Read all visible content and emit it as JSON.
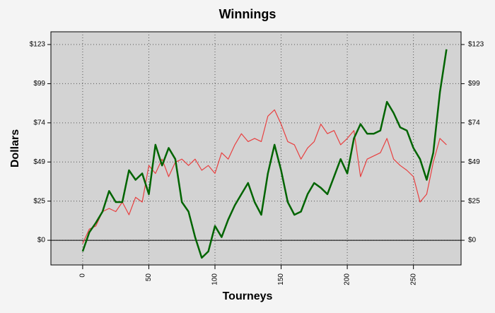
{
  "chart_data": {
    "type": "line",
    "title": "Winnings",
    "xlabel": "Tourneys",
    "ylabel": "Dollars",
    "x": [
      0,
      5,
      10,
      15,
      20,
      25,
      30,
      35,
      40,
      45,
      50,
      55,
      60,
      65,
      70,
      75,
      80,
      85,
      90,
      95,
      100,
      105,
      110,
      115,
      120,
      125,
      130,
      135,
      140,
      145,
      150,
      155,
      160,
      165,
      170,
      175,
      180,
      185,
      190,
      195,
      200,
      205,
      210,
      215,
      220,
      225,
      230,
      235,
      240,
      245,
      250,
      255,
      260,
      265,
      270,
      275
    ],
    "series": [
      {
        "color": "#006400",
        "values": [
          -7,
          5,
          11,
          18,
          31,
          24,
          24,
          44,
          38,
          42,
          29,
          60,
          47,
          58,
          51,
          24,
          18,
          2,
          -11,
          -7,
          9,
          2,
          13,
          22,
          29,
          36,
          24,
          16,
          42,
          60,
          44,
          24,
          16,
          18,
          29,
          36,
          33,
          29,
          40,
          51,
          42,
          64,
          73,
          67,
          67,
          69,
          87,
          80,
          71,
          69,
          58,
          51,
          38,
          55,
          93,
          120
        ]
      },
      {
        "color": "#e84040",
        "values": [
          -2,
          7,
          9,
          18,
          20,
          18,
          24,
          16,
          27,
          24,
          47,
          42,
          51,
          40,
          49,
          51,
          47,
          51,
          44,
          47,
          42,
          55,
          51,
          60,
          67,
          62,
          64,
          62,
          78,
          82,
          73,
          62,
          60,
          51,
          58,
          62,
          73,
          67,
          69,
          60,
          64,
          69,
          40,
          51,
          53,
          55,
          64,
          51,
          47,
          44,
          40,
          24,
          29,
          49,
          64,
          60
        ]
      }
    ],
    "xlim": [
      -24,
      286
    ],
    "xticks": [
      0,
      50,
      100,
      150,
      200,
      250
    ],
    "ylim": [
      -15.5,
      131
    ],
    "yticks": [
      {
        "value": 0,
        "label": "$0"
      },
      {
        "value": 24.6,
        "label": "$25"
      },
      {
        "value": 49.2,
        "label": "$49"
      },
      {
        "value": 73.8,
        "label": "$74"
      },
      {
        "value": 98.4,
        "label": "$99"
      },
      {
        "value": 123,
        "label": "$123"
      }
    ],
    "grid": true
  }
}
